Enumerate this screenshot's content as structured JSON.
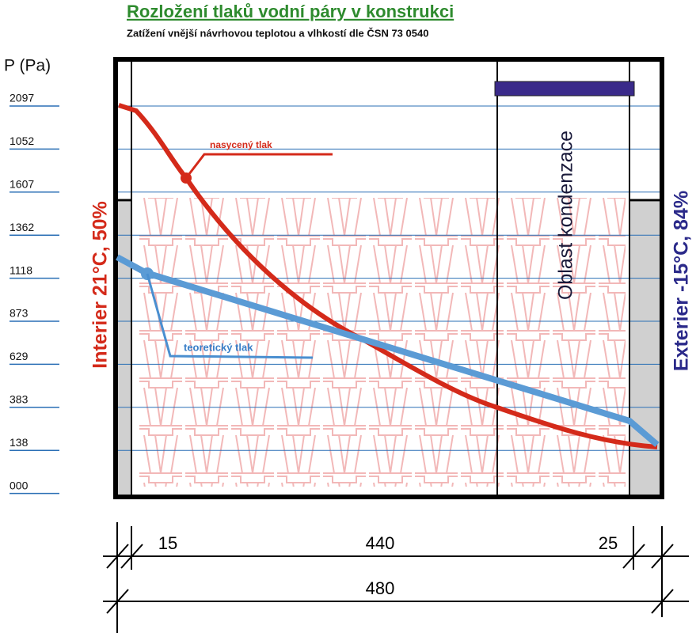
{
  "header": {
    "title": "Rozložení tlaků vodní páry v konstrukci",
    "subtitle": "Zatížení vnější návrhovou teplotou a vlhkostí dle ČSN 73 0540"
  },
  "axis": {
    "label": "P (Pa)",
    "ticks": [
      "2097",
      "1052",
      "1607",
      "1362",
      "1118",
      "873",
      "629",
      "383",
      "138",
      "000"
    ]
  },
  "labels": {
    "saturated": "nasycený tlak",
    "theoretical": "teoretický tlak",
    "interior": "Interier 21°C, 50%",
    "exterior": "Exterier -15°C, 84%",
    "zone": "Oblast kondenzace"
  },
  "dimensions": {
    "left": "15",
    "middle": "440",
    "right": "25",
    "total": "480"
  }
}
